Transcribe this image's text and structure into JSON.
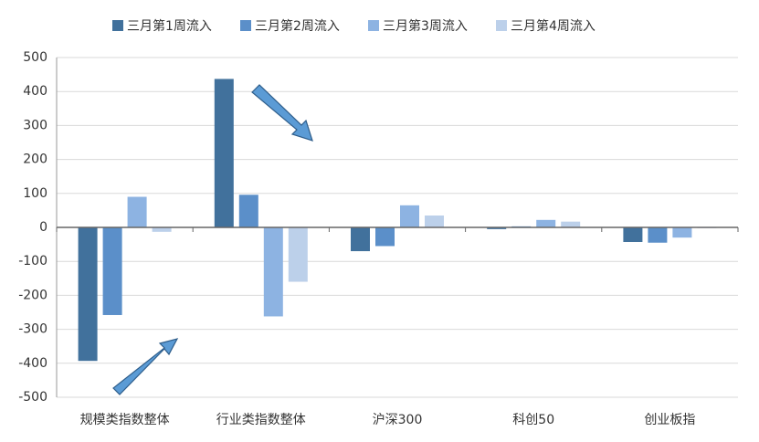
{
  "chart_data": {
    "type": "bar",
    "categories": [
      "规模类指数整体",
      "行业类指数整体",
      "沪深300",
      "科创50",
      "创业板指"
    ],
    "series": [
      {
        "name": "三月第1周流入",
        "color": "#41719c",
        "values": [
          -393,
          437,
          -70,
          -5,
          -43
        ]
      },
      {
        "name": "三月第2周流入",
        "color": "#5b8fc9",
        "values": [
          -258,
          96,
          -55,
          3,
          -45
        ]
      },
      {
        "name": "三月第3周流入",
        "color": "#8db3e2",
        "values": [
          90,
          -262,
          65,
          22,
          -30
        ]
      },
      {
        "name": "三月第4周流入",
        "color": "#bcd0ea",
        "values": [
          -13,
          -160,
          35,
          17,
          -2
        ]
      }
    ],
    "ylim": [
      -500,
      500
    ],
    "yticks": [
      -500,
      -400,
      -300,
      -200,
      -100,
      0,
      100,
      200,
      300,
      400,
      500
    ],
    "grid": true,
    "legend": "top"
  }
}
